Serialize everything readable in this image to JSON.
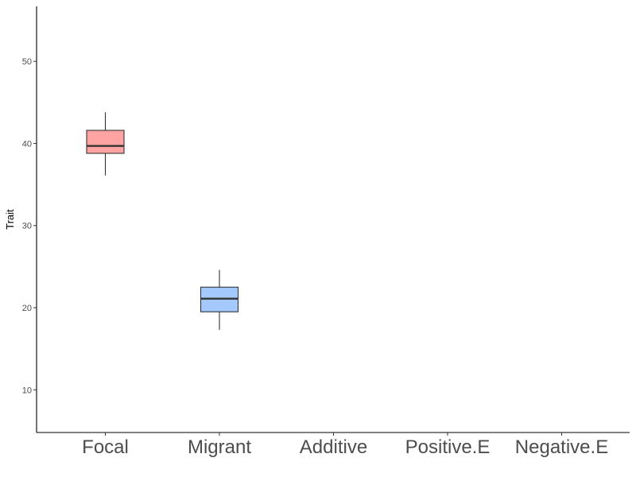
{
  "chart_data": {
    "type": "box",
    "title": "",
    "xlabel": "",
    "ylabel": "Trait",
    "categories": [
      "Focal",
      "Migrant",
      "Additive",
      "Positive.E",
      "Negative.E"
    ],
    "ylim": [
      4.8,
      56.7
    ],
    "yticks": [
      10,
      20,
      30,
      40,
      50
    ],
    "grid": false,
    "legend": "none",
    "boxes": [
      {
        "category": "Focal",
        "whisker_low": 36.1,
        "q1": 38.8,
        "median": 39.7,
        "q3": 41.6,
        "whisker_high": 43.8,
        "fill": "#ffa3a3"
      },
      {
        "category": "Migrant",
        "whisker_low": 17.3,
        "q1": 19.5,
        "median": 21.1,
        "q3": 22.5,
        "whisker_high": 24.6,
        "fill": "#a3c9ff"
      }
    ]
  }
}
